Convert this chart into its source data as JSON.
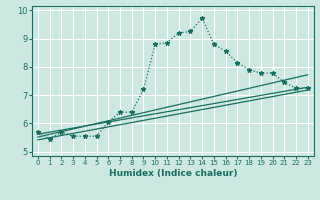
{
  "xlabel": "Humidex (Indice chaleur)",
  "bg_color": "#cce8e0",
  "line_color": "#1a6e60",
  "grid_color": "#aad4cc",
  "xlim": [
    -0.5,
    23.5
  ],
  "ylim": [
    4.85,
    10.15
  ],
  "xticks": [
    0,
    1,
    2,
    3,
    4,
    5,
    6,
    7,
    8,
    9,
    10,
    11,
    12,
    13,
    14,
    15,
    16,
    17,
    18,
    19,
    20,
    21,
    22,
    23
  ],
  "yticks": [
    5,
    6,
    7,
    8,
    9,
    10
  ],
  "curve_x": [
    0,
    1,
    2,
    3,
    4,
    5,
    6,
    7,
    8,
    9,
    10,
    11,
    12,
    13,
    14,
    15,
    16,
    17,
    18,
    19,
    20,
    21,
    22,
    23
  ],
  "curve_y": [
    5.7,
    5.45,
    5.7,
    5.55,
    5.55,
    5.55,
    6.05,
    6.4,
    6.4,
    7.2,
    8.8,
    8.85,
    9.2,
    9.25,
    9.72,
    8.8,
    8.55,
    8.15,
    7.9,
    7.78,
    7.78,
    7.45,
    7.25,
    7.25
  ],
  "line1_x": [
    0,
    23
  ],
  "line1_y": [
    5.62,
    7.28
  ],
  "line2_x": [
    0,
    23
  ],
  "line2_y": [
    5.52,
    7.72
  ],
  "line3_x": [
    0,
    23
  ],
  "line3_y": [
    5.42,
    7.18
  ]
}
